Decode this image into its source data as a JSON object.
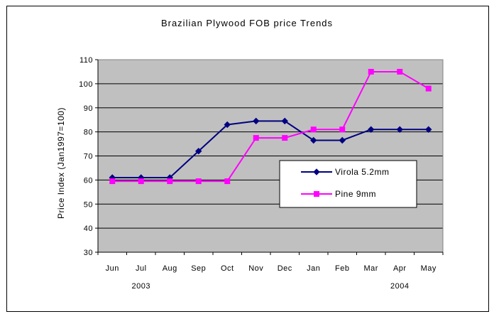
{
  "chart_data": {
    "type": "line",
    "title": "Brazilian Plywood FOB price Trends",
    "ylabel": "Price Index (Jan1997=100)",
    "xlabel": "",
    "categories": [
      "Jun",
      "Jul",
      "Aug",
      "Sep",
      "Oct",
      "Nov",
      "Dec",
      "Jan",
      "Feb",
      "Mar",
      "Apr",
      "May"
    ],
    "year_labels": [
      {
        "label": "2003",
        "category": "Jul"
      },
      {
        "label": "2004",
        "category": "Apr"
      }
    ],
    "ylim": [
      30,
      110
    ],
    "yticks": [
      30,
      40,
      50,
      60,
      70,
      80,
      90,
      100,
      110
    ],
    "grid": true,
    "legend_position": "inside-right",
    "plot_background": "#c0c0c0",
    "series": [
      {
        "name": "Virola 5.2mm",
        "color": "#000080",
        "marker": "diamond",
        "values": [
          61,
          61,
          61,
          72,
          83,
          84.5,
          84.5,
          76.5,
          76.5,
          81,
          81,
          81
        ]
      },
      {
        "name": "Pine 9mm",
        "color": "#ff00ff",
        "marker": "square",
        "values": [
          59.5,
          59.5,
          59.5,
          59.5,
          59.5,
          77.5,
          77.5,
          81,
          81,
          105,
          105,
          98
        ]
      }
    ]
  }
}
